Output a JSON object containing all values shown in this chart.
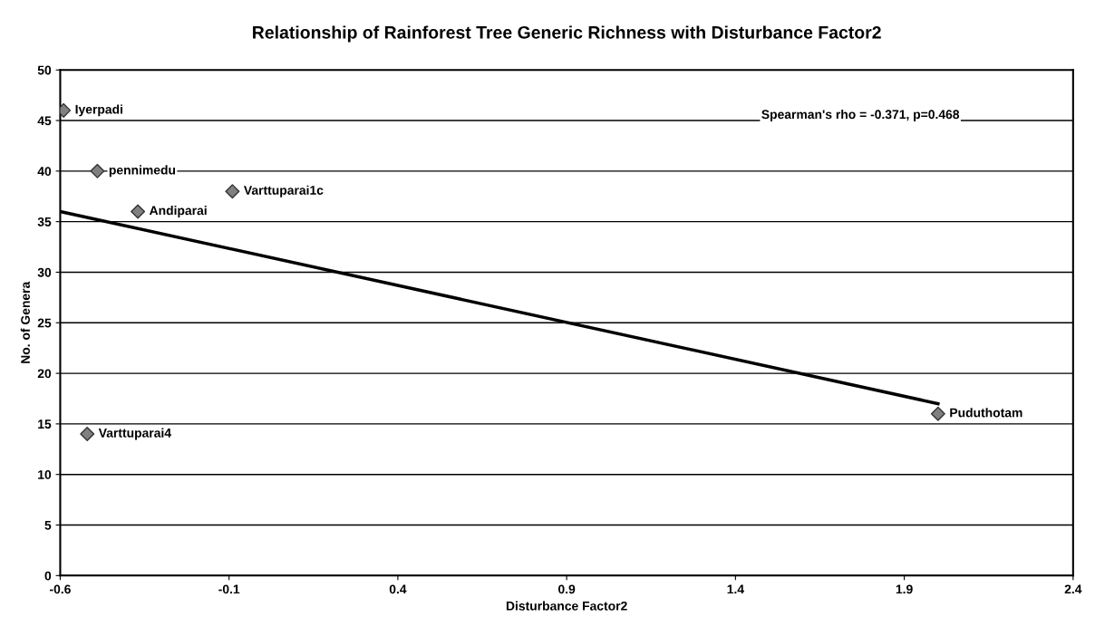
{
  "chart_data": {
    "type": "scatter",
    "title": "Relationship of Rainforest Tree Generic Richness with Disturbance Factor2",
    "xlabel": "Disturbance Factor2",
    "ylabel": "No. of Genera",
    "series": [
      {
        "color": "#808080",
        "marker": "diamond",
        "x": [
          -0.59,
          -0.49,
          -0.09,
          -0.37,
          -0.52,
          2.0
        ],
        "values": [
          46,
          40,
          38,
          36,
          14,
          16
        ],
        "value_labels": [
          "Iyerpadi",
          "pennimedu",
          "Varttuparai1c",
          "Andiparai",
          "Varttuparai4",
          "Puduthotam"
        ]
      },
      {
        "type": "line",
        "marker": "none",
        "color": "#000000",
        "x": [
          -0.6,
          2.0
        ],
        "values": [
          36,
          17
        ]
      }
    ],
    "annotations": [
      "Spearman's rho = -0.371, p=0.468"
    ],
    "xlim": [
      -0.6,
      2.4
    ],
    "xticks": [
      -0.6,
      -0.1,
      0.4,
      0.9,
      1.4,
      1.9,
      2.4
    ],
    "ylim": [
      0,
      50
    ],
    "yticks": [
      0,
      5,
      10,
      15,
      20,
      25,
      30,
      35,
      40,
      45,
      50
    ],
    "grid": "y",
    "legend": false
  }
}
